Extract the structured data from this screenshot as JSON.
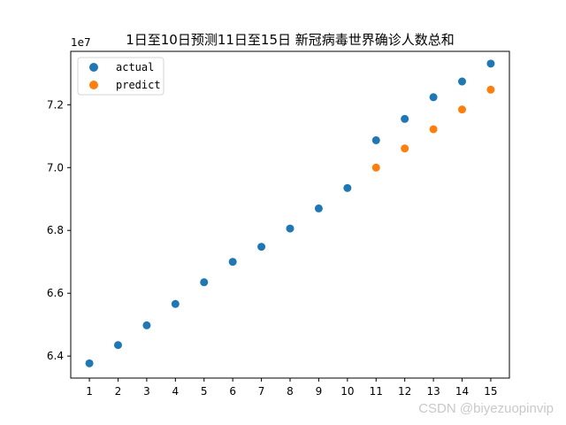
{
  "chart_data": {
    "type": "scatter",
    "title": "1日至10日预测11日至15日 新冠病毒世界确诊人数总和",
    "xlabel": "",
    "ylabel": "",
    "y_scale_label": "1e7",
    "xlim": [
      0.35,
      15.65
    ],
    "ylim": [
      6.33,
      7.37
    ],
    "x_ticks": [
      1,
      2,
      3,
      4,
      5,
      6,
      7,
      8,
      9,
      10,
      11,
      12,
      13,
      14,
      15
    ],
    "x_tick_labels": [
      "1",
      "2",
      "3",
      "4",
      "5",
      "6",
      "7",
      "8",
      "9",
      "10",
      "11",
      "12",
      "13",
      "14",
      "15"
    ],
    "y_ticks": [
      6.4,
      6.6,
      6.8,
      7.0,
      7.2
    ],
    "y_tick_labels": [
      "6.4",
      "6.6",
      "6.8",
      "7.0",
      "7.2"
    ],
    "grid": false,
    "legend_position": "top-left",
    "series": [
      {
        "name": "actual",
        "color": "#1f77b4",
        "x": [
          1,
          2,
          3,
          4,
          5,
          6,
          7,
          8,
          9,
          10,
          11,
          12,
          13,
          14,
          15
        ],
        "y": [
          6.377,
          6.435,
          6.498,
          6.566,
          6.635,
          6.7,
          6.748,
          6.806,
          6.87,
          6.935,
          7.087,
          7.155,
          7.224,
          7.274,
          7.331
        ]
      },
      {
        "name": "predict",
        "color": "#ff7f0e",
        "x": [
          11,
          12,
          13,
          14,
          15
        ],
        "y": [
          7.0,
          7.061,
          7.122,
          7.185,
          7.248
        ]
      }
    ]
  },
  "watermark": "CSDN @biyezuopinvip"
}
